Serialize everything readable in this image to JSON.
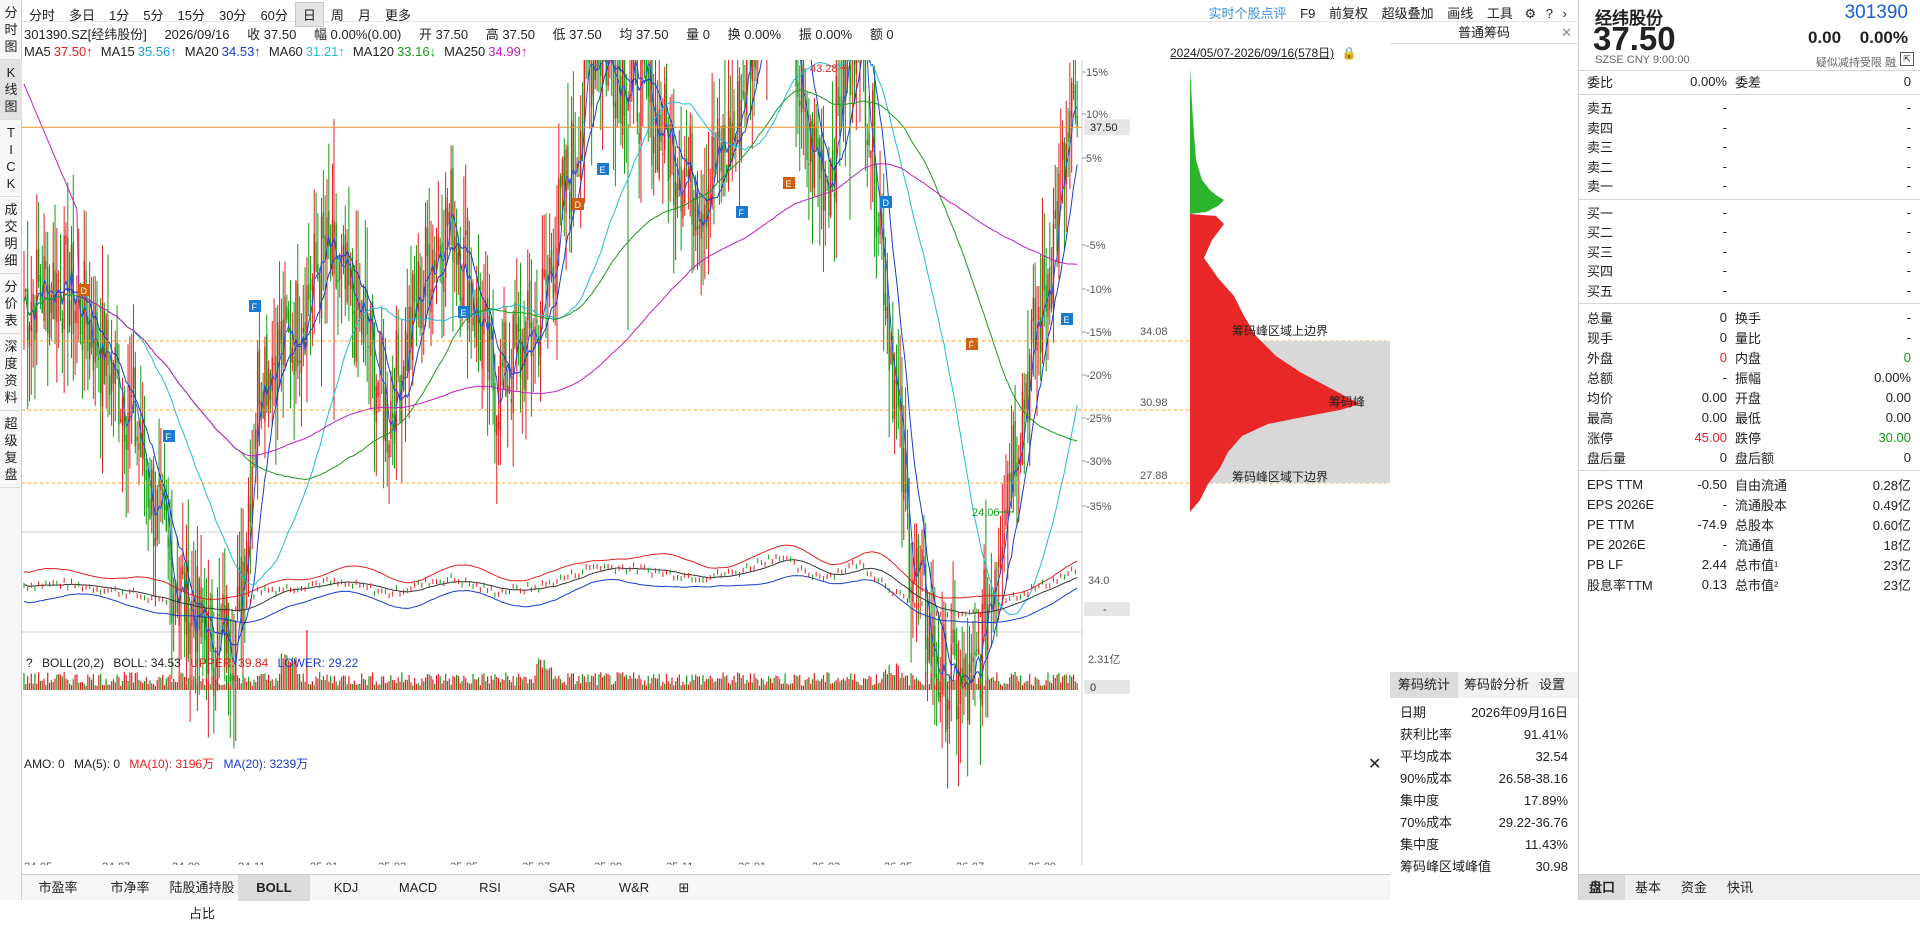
{
  "toolbar": {
    "periods": [
      "分时",
      "多日",
      "1分",
      "5分",
      "15分",
      "30分",
      "60分",
      "日",
      "周",
      "月",
      "更多"
    ],
    "active_period": "日",
    "right_links": [
      "实时个股点评",
      "F9",
      "前复权",
      "超级叠加",
      "画线",
      "工具"
    ]
  },
  "left_tabs": [
    {
      "label": "分时图",
      "active": false
    },
    {
      "label": "K线图",
      "active": true
    },
    {
      "label": "TICK",
      "active": false
    },
    {
      "label": "成交明细",
      "active": false
    },
    {
      "label": "分价表",
      "active": false
    },
    {
      "label": "深度资料",
      "active": false
    },
    {
      "label": "超级复盘",
      "active": false
    }
  ],
  "info_bar": {
    "code": "301390.SZ[经纬股份]",
    "date": "2026/09/16",
    "close": "收 37.50",
    "range": "幅 0.00%(0.00)",
    "open": "开 37.50",
    "high": "高 37.50",
    "low": "低 37.50",
    "avg": "均 37.50",
    "vol": "量 0",
    "turnover": "换 0.00%",
    "amplitude": "振 0.00%",
    "amount": "额 0"
  },
  "ma_bar": {
    "items": [
      {
        "label": "MA5",
        "value": "37.50↑",
        "color": "#e02020"
      },
      {
        "label": "MA15",
        "value": "35.56↑",
        "color": "#1aa6d0"
      },
      {
        "label": "MA20",
        "value": "34.53↑",
        "color": "#1a3cc8"
      },
      {
        "label": "MA60",
        "value": "31.21↑",
        "color": "#22bcd8"
      },
      {
        "label": "MA120",
        "value": "33.16↓",
        "color": "#1b9a1b"
      },
      {
        "label": "MA250",
        "value": "34.99↑",
        "color": "#c020c0"
      }
    ],
    "range": "2024/05/07-2026/09/16(578日)"
  },
  "main_chart": {
    "y_ticks": [
      "15%",
      "10%",
      "5%",
      "-5%",
      "-10%",
      "-15%",
      "-20%",
      "-25%",
      "-30%",
      "-35%"
    ],
    "current_price": "37.50",
    "high_label": "43.28",
    "low_label": "24.06",
    "markers": [
      "D",
      "F",
      "E",
      "F",
      "D",
      "E",
      "F",
      "E",
      "D",
      "F",
      "E"
    ]
  },
  "boll": {
    "title": "BOLL(20,2)",
    "mid": "BOLL: 34.53",
    "upper": "UPPER: 39.84",
    "lower": "LOWER: 29.22",
    "axis": "34.0",
    "side": "-"
  },
  "amo": {
    "title": "AMO: 0",
    "ma5": "MA(5): 0",
    "ma10": "MA(10): 3196万",
    "ma20": "MA(20): 3239万",
    "axis_top": "2.31亿",
    "axis_bottom": "0"
  },
  "x_axis": [
    "24-05",
    "24-07",
    "24-09",
    "24-11",
    "25-01",
    "25-03",
    "25-05",
    "25-07",
    "25-09",
    "25-11",
    "26-01",
    "26-03",
    "26-05",
    "26-07",
    "26-09"
  ],
  "bottom_tabs": [
    "市盈率",
    "市净率",
    "陆股通持股占比",
    "BOLL",
    "KDJ",
    "MACD",
    "RSI",
    "SAR",
    "W&R"
  ],
  "active_bottom_tab": "BOLL",
  "chip": {
    "title": "普通筹码",
    "top_boundary": "筹码峰区域上边界",
    "peak": "筹码峰",
    "bottom_boundary": "筹码峰区域下边界",
    "price_top": "34.08",
    "price_peak": "30.98",
    "price_bottom": "27.88",
    "tabs": [
      "筹码统计",
      "筹码龄分析",
      "设置"
    ],
    "stats": [
      {
        "k": "日期",
        "v": "2026年09月16日"
      },
      {
        "k": "获利比率",
        "v": "91.41%"
      },
      {
        "k": "平均成本",
        "v": "32.54"
      },
      {
        "k": "90%成本",
        "v": "26.58-38.16"
      },
      {
        "k": "集中度",
        "v": "17.89%"
      },
      {
        "k": "70%成本",
        "v": "29.22-36.76"
      },
      {
        "k": "集中度",
        "v": "11.43%"
      },
      {
        "k": "筹码峰区域峰值",
        "v": "30.98"
      }
    ]
  },
  "quote": {
    "name": "经纬股份",
    "code": "301390",
    "price": "37.50",
    "change": "0.00",
    "pct": "0.00%",
    "exchange": "SZSE CNY 9:00:00",
    "tags": "疑似减持受限 融",
    "weibi": {
      "k": "委比",
      "v": "0.00%",
      "k2": "委差",
      "v2": "0"
    },
    "asks": [
      {
        "k": "卖五",
        "p": "-",
        "v": "-"
      },
      {
        "k": "卖四",
        "p": "-",
        "v": "-"
      },
      {
        "k": "卖三",
        "p": "-",
        "v": "-"
      },
      {
        "k": "卖二",
        "p": "-",
        "v": "-"
      },
      {
        "k": "卖一",
        "p": "-",
        "v": "-"
      }
    ],
    "bids": [
      {
        "k": "买一",
        "p": "-",
        "v": "-"
      },
      {
        "k": "买二",
        "p": "-",
        "v": "-"
      },
      {
        "k": "买三",
        "p": "-",
        "v": "-"
      },
      {
        "k": "买四",
        "p": "-",
        "v": "-"
      },
      {
        "k": "买五",
        "p": "-",
        "v": "-"
      }
    ],
    "stats1": [
      {
        "k": "总量",
        "v": "0",
        "k2": "换手",
        "v2": "-"
      },
      {
        "k": "现手",
        "v": "0",
        "k2": "量比",
        "v2": "-"
      },
      {
        "k": "外盘",
        "v": "0",
        "k2": "内盘",
        "v2": "0"
      },
      {
        "k": "总额",
        "v": "-",
        "k2": "振幅",
        "v2": "0.00%"
      },
      {
        "k": "均价",
        "v": "0.00",
        "k2": "开盘",
        "v2": "0.00"
      },
      {
        "k": "最高",
        "v": "0.00",
        "k2": "最低",
        "v2": "0.00"
      },
      {
        "k": "涨停",
        "v": "45.00",
        "k2": "跌停",
        "v2": "30.00"
      },
      {
        "k": "盘后量",
        "v": "0",
        "k2": "盘后额",
        "v2": "0"
      }
    ],
    "stats2": [
      {
        "k": "EPS TTM",
        "v": "-0.50",
        "k2": "自由流通",
        "v2": "0.28亿"
      },
      {
        "k": "EPS 2026E",
        "v": "-",
        "k2": "流通股本",
        "v2": "0.49亿"
      },
      {
        "k": "PE TTM",
        "v": "-74.9",
        "k2": "总股本",
        "v2": "0.60亿"
      },
      {
        "k": "PE 2026E",
        "v": "-",
        "k2": "流通值",
        "v2": "18亿"
      },
      {
        "k": "PB LF",
        "v": "2.44",
        "k2": "总市值¹",
        "v2": "23亿"
      },
      {
        "k": "股息率TTM",
        "v": "0.13",
        "k2": "总市值²",
        "v2": "23亿"
      }
    ],
    "bottom_tabs": [
      "盘口",
      "基本",
      "资金",
      "快讯"
    ]
  },
  "colors": {
    "up": "#e02020",
    "down": "#109c10",
    "accent": "#1a5fd0",
    "price_line": "#e8962a"
  }
}
